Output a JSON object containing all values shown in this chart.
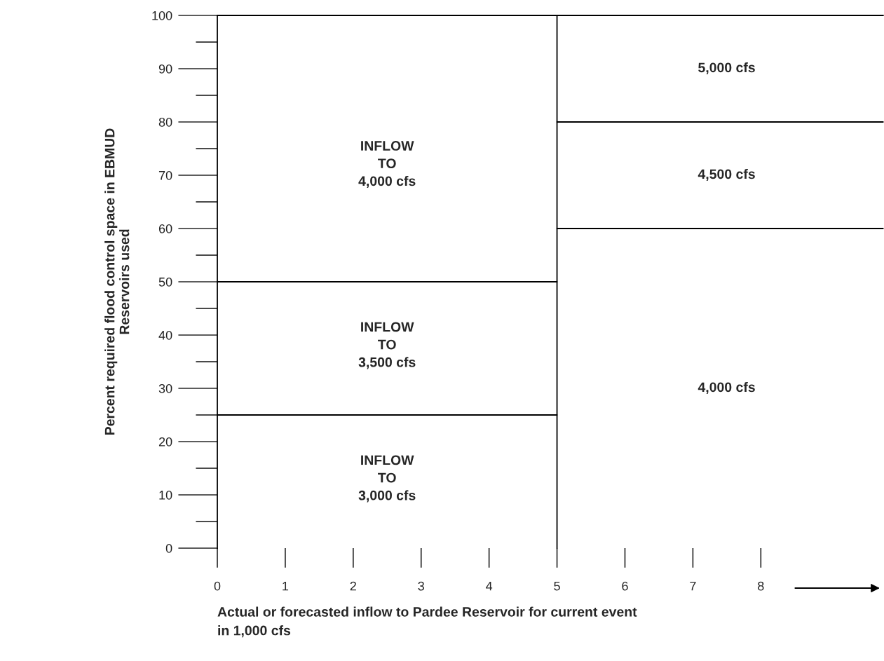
{
  "chart_data": {
    "type": "line",
    "xlabel": "Actual or forecasted inflow to Pardee Reservoir for current event\nin 1,000 cfs",
    "ylabel": "Percent required flood control space in EBMUD\nReservoirs used",
    "xlim": [
      0,
      9.8
    ],
    "ylim": [
      0,
      100
    ],
    "xticks": [
      0,
      1,
      2,
      3,
      4,
      5,
      6,
      7,
      8
    ],
    "yticks": [
      0,
      10,
      20,
      30,
      40,
      50,
      60,
      70,
      80,
      90,
      100
    ],
    "series": [
      {
        "color": "#000000",
        "x": [
          0,
          5
        ],
        "values": [
          50,
          50
        ]
      },
      {
        "color": "#000000",
        "x": [
          0,
          5
        ],
        "values": [
          25,
          25
        ]
      },
      {
        "color": "#000000",
        "x": [
          5,
          5
        ],
        "values": [
          0,
          100
        ]
      },
      {
        "color": "#000000",
        "x": [
          5,
          9.8
        ],
        "values": [
          80,
          80
        ]
      },
      {
        "color": "#000000",
        "x": [
          5,
          9.8
        ],
        "values": [
          60,
          60
        ]
      }
    ],
    "annotations": [
      "INFLOW\nTO\n4,000 cfs",
      "INFLOW\nTO\n3,500 cfs",
      "INFLOW\nTO\n3,000 cfs",
      "5,000 cfs",
      "4,500 cfs",
      "4,000 cfs"
    ]
  }
}
